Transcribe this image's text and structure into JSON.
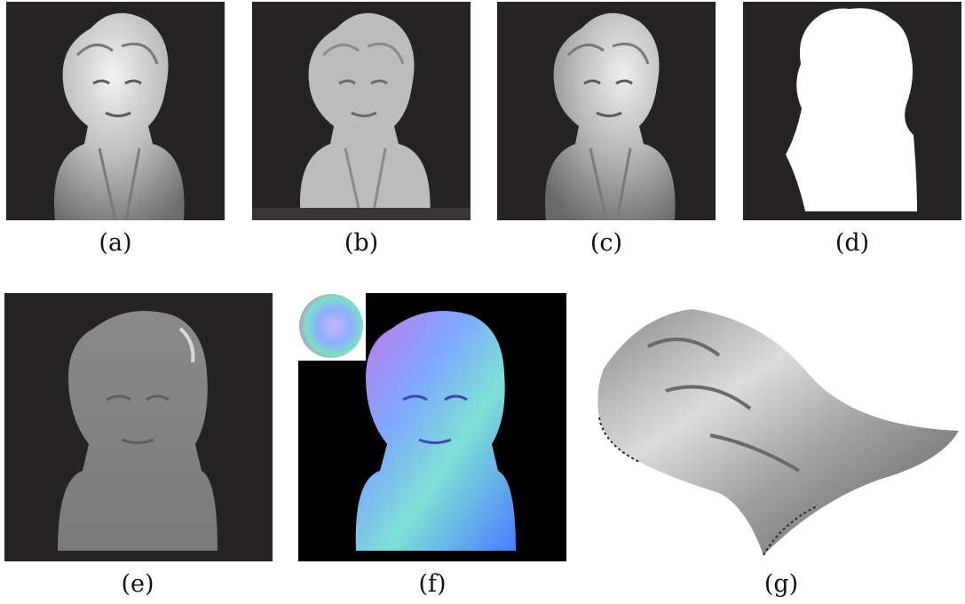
{
  "figure": {
    "panels": [
      {
        "id": "a",
        "caption": "(a)",
        "content": "bust-photo-light-left"
      },
      {
        "id": "b",
        "caption": "(b)",
        "content": "bust-photo-light-front"
      },
      {
        "id": "c",
        "caption": "(c)",
        "content": "bust-photo-light-right"
      },
      {
        "id": "d",
        "caption": "(d)",
        "content": "silhouette-mask"
      },
      {
        "id": "e",
        "caption": "(e)",
        "content": "albedo-map"
      },
      {
        "id": "f",
        "caption": "(f)",
        "content": "normal-map-with-reference-sphere"
      },
      {
        "id": "g",
        "caption": "(g)",
        "content": "reconstructed-3d-surface"
      }
    ],
    "colors": {
      "photo_background": "#262324",
      "mask_foreground": "#ffffff",
      "normal_background": "#000000"
    }
  }
}
